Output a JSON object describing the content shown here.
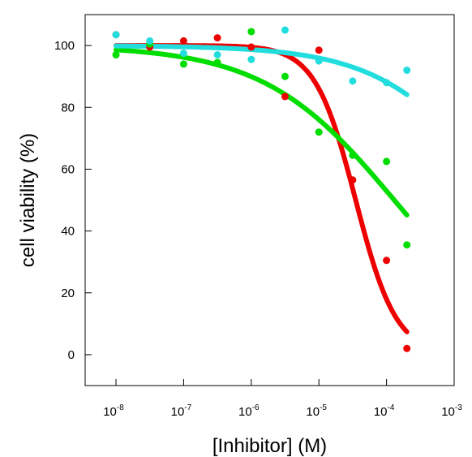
{
  "chart_data": {
    "type": "scatter",
    "title": "",
    "xlabel": "[Inhibitor] (M)",
    "ylabel": "cell viability (%)",
    "x_scale": "log",
    "xlim": [
      3.5e-09,
      0.001
    ],
    "ylim": [
      -10,
      110
    ],
    "grid": false,
    "legend": "none",
    "x_ticks": [
      {
        "value": 1e-08,
        "base": "10",
        "exp": "-8"
      },
      {
        "value": 1e-07,
        "base": "10",
        "exp": "-7"
      },
      {
        "value": 1e-06,
        "base": "10",
        "exp": "-6"
      },
      {
        "value": 1e-05,
        "base": "10",
        "exp": "-5"
      },
      {
        "value": 0.0001,
        "base": "10",
        "exp": "-4"
      },
      {
        "value": 0.001,
        "base": "10",
        "exp": "-3"
      }
    ],
    "y_ticks": [
      0,
      20,
      40,
      60,
      80,
      100
    ],
    "series": [
      {
        "color": "#ee0000",
        "points": [
          {
            "x": 1e-08,
            "y": 103.5
          },
          {
            "x": 3.16e-08,
            "y": 99.5
          },
          {
            "x": 1e-07,
            "y": 101.5
          },
          {
            "x": 3.16e-07,
            "y": 102.5
          },
          {
            "x": 1e-06,
            "y": 99.5
          },
          {
            "x": 3.16e-06,
            "y": 83.5
          },
          {
            "x": 1e-05,
            "y": 98.5
          },
          {
            "x": 3.16e-05,
            "y": 56.5
          },
          {
            "x": 0.0001,
            "y": 30.5
          },
          {
            "x": 0.0002,
            "y": 2
          }
        ],
        "fit": {
          "top": 100,
          "bottom": 0,
          "ec50": 3.5e-05,
          "hill": 1.45
        }
      },
      {
        "color": "#00dd00",
        "points": [
          {
            "x": 1e-08,
            "y": 97
          },
          {
            "x": 3.16e-08,
            "y": 100.5
          },
          {
            "x": 1e-07,
            "y": 94
          },
          {
            "x": 3.16e-07,
            "y": 94.5
          },
          {
            "x": 1e-06,
            "y": 104.5
          },
          {
            "x": 3.16e-06,
            "y": 90
          },
          {
            "x": 1e-05,
            "y": 72
          },
          {
            "x": 3.16e-05,
            "y": 64.5
          },
          {
            "x": 0.0001,
            "y": 62.5
          },
          {
            "x": 0.0002,
            "y": 35.5
          }
        ],
        "fit": {
          "top": 100,
          "bottom": 0,
          "ec50": 0.00013,
          "hill": 0.45
        }
      },
      {
        "color": "#22dddd",
        "points": [
          {
            "x": 1e-08,
            "y": 103.5
          },
          {
            "x": 3.16e-08,
            "y": 101.5
          },
          {
            "x": 1e-07,
            "y": 97.5
          },
          {
            "x": 3.16e-07,
            "y": 97
          },
          {
            "x": 1e-06,
            "y": 95.5
          },
          {
            "x": 3.16e-06,
            "y": 105
          },
          {
            "x": 1e-05,
            "y": 95
          },
          {
            "x": 3.16e-05,
            "y": 88.5
          },
          {
            "x": 0.0001,
            "y": 88
          },
          {
            "x": 0.0002,
            "y": 92
          }
        ],
        "fit": {
          "top": 100,
          "bottom": 0,
          "ec50": 0.0056,
          "hill": 0.5
        }
      }
    ]
  }
}
